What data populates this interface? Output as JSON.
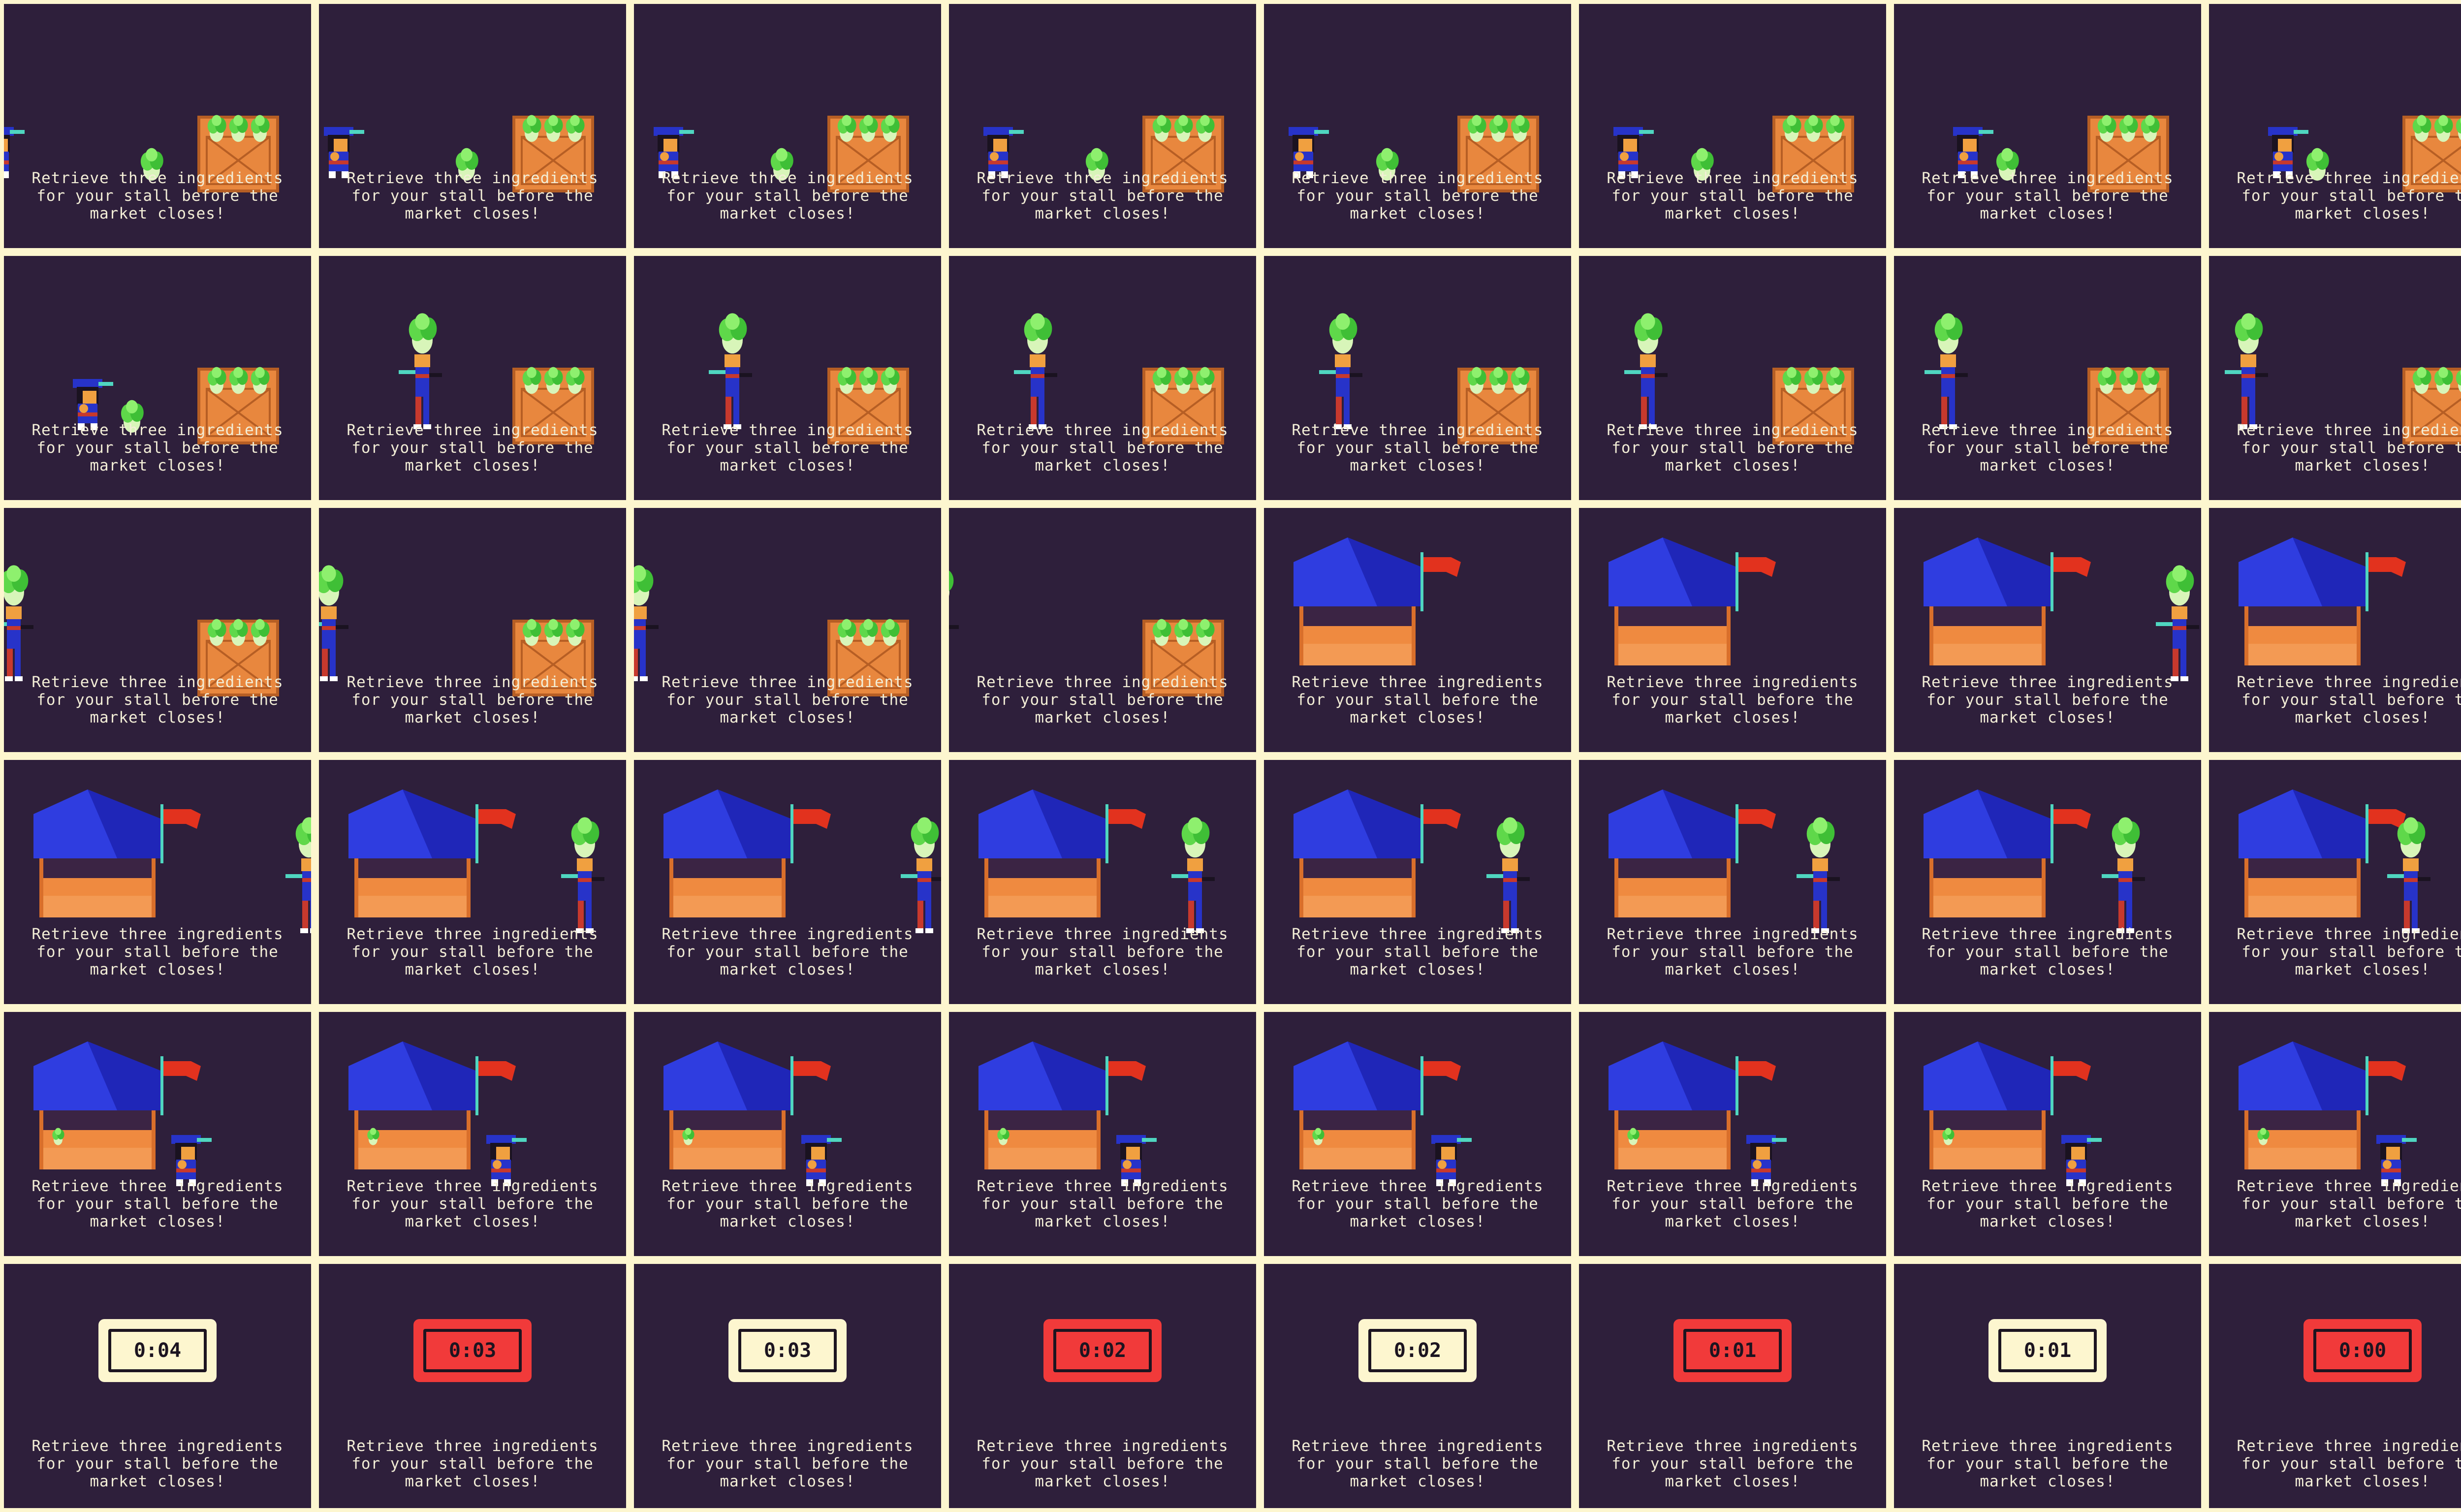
{
  "caption": "Retrieve three ingredients for your stall before the market closes!",
  "colors": {
    "background": "#2e1f3b",
    "sheet_border": "#fdf6cf",
    "timer_light": "#fdf6cf",
    "timer_alert": "#f13a3a",
    "stall_roof": "#2f3de0",
    "stall_base": "#ef8a40",
    "crate": "#e8873e",
    "cabbage": "#5fd84a",
    "flag": "#e2321e"
  },
  "frames": [
    {
      "scene": "crate",
      "player": "walk",
      "hold": false
    },
    {
      "scene": "crate",
      "player": "walk",
      "hold": false
    },
    {
      "scene": "crate",
      "player": "walk",
      "hold": false
    },
    {
      "scene": "crate",
      "player": "walk",
      "hold": false
    },
    {
      "scene": "crate",
      "player": "walk",
      "hold": false
    },
    {
      "scene": "crate",
      "player": "walk",
      "hold": false
    },
    {
      "scene": "crate",
      "player": "walk",
      "hold": false
    },
    {
      "scene": "crate",
      "player": "walk",
      "hold": false
    },
    {
      "scene": "crate",
      "player": "crouch",
      "hold": false
    },
    {
      "scene": "crate",
      "player": "stand",
      "hold": true
    },
    {
      "scene": "crate",
      "player": "stand",
      "hold": true
    },
    {
      "scene": "crate",
      "player": "stand",
      "hold": true
    },
    {
      "scene": "crate",
      "player": "stand",
      "hold": true
    },
    {
      "scene": "crate",
      "player": "stand",
      "hold": true
    },
    {
      "scene": "crate",
      "player": "stand",
      "hold": true
    },
    {
      "scene": "crate",
      "player": "stand",
      "hold": true
    },
    {
      "scene": "crate",
      "player": "stand",
      "hold": true
    },
    {
      "scene": "crate",
      "player": "stand",
      "hold": true
    },
    {
      "scene": "crate",
      "player": "stand",
      "hold": true
    },
    {
      "scene": "crate",
      "player": "stand",
      "hold": true
    },
    {
      "scene": "stall",
      "player": "none",
      "hold": false
    },
    {
      "scene": "stall",
      "player": "none",
      "hold": false
    },
    {
      "scene": "stall",
      "player": "stand",
      "hold": true
    },
    {
      "scene": "stall",
      "player": "stand",
      "hold": true
    },
    {
      "scene": "stall",
      "player": "stand",
      "hold": true
    },
    {
      "scene": "stall",
      "player": "stand",
      "hold": true
    },
    {
      "scene": "stall",
      "player": "stand",
      "hold": true
    },
    {
      "scene": "stall",
      "player": "stand",
      "hold": true
    },
    {
      "scene": "stall",
      "player": "stand",
      "hold": true
    },
    {
      "scene": "stall",
      "player": "stand",
      "hold": true
    },
    {
      "scene": "stall",
      "player": "stand",
      "hold": true
    },
    {
      "scene": "stall",
      "player": "stand",
      "hold": true
    },
    {
      "scene": "stall",
      "player": "crouch",
      "hold": false,
      "ingredient_in_stall": true
    },
    {
      "scene": "stall",
      "player": "crouch",
      "hold": false,
      "ingredient_in_stall": true
    },
    {
      "scene": "stall",
      "player": "crouch",
      "hold": false,
      "ingredient_in_stall": true
    },
    {
      "scene": "stall",
      "player": "crouch",
      "hold": false,
      "ingredient_in_stall": true
    },
    {
      "scene": "stall",
      "player": "crouch",
      "hold": false,
      "ingredient_in_stall": true
    },
    {
      "scene": "stall",
      "player": "crouch",
      "hold": false,
      "ingredient_in_stall": true
    },
    {
      "scene": "stall",
      "player": "crouch",
      "hold": false,
      "ingredient_in_stall": true
    },
    {
      "scene": "stall",
      "player": "crouch",
      "hold": false,
      "ingredient_in_stall": true
    },
    {
      "scene": "timer",
      "time": "0:04",
      "alert": false
    },
    {
      "scene": "timer",
      "time": "0:03",
      "alert": true
    },
    {
      "scene": "timer",
      "time": "0:03",
      "alert": false
    },
    {
      "scene": "timer",
      "time": "0:02",
      "alert": true
    },
    {
      "scene": "timer",
      "time": "0:02",
      "alert": false
    },
    {
      "scene": "timer",
      "time": "0:01",
      "alert": true
    },
    {
      "scene": "timer",
      "time": "0:01",
      "alert": false
    },
    {
      "scene": "timer",
      "time": "0:00",
      "alert": true
    }
  ]
}
